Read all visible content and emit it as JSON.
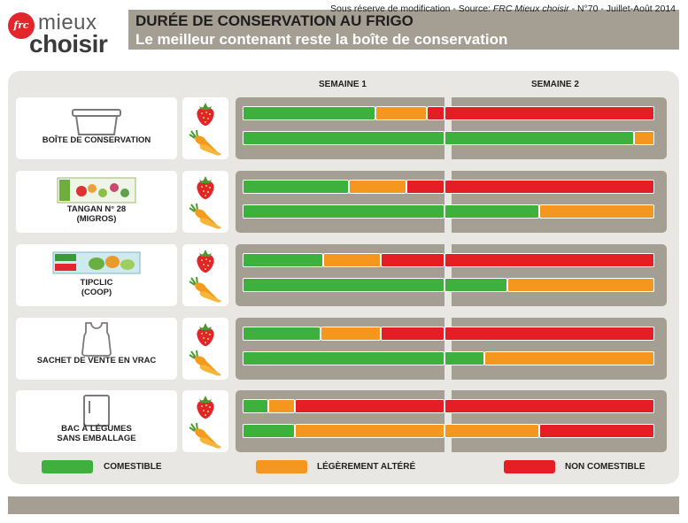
{
  "header": {
    "logo_badge": "frc",
    "logo_line1": "mieux",
    "logo_line2": "choisir",
    "title": "DURÉE DE CONSERVATION AU FRIGO",
    "subtitle": "Le meilleur contenant reste la boîte de conservation"
  },
  "weeks": [
    "SEMAINE 1",
    "SEMAINE 2"
  ],
  "colors": {
    "comestible": "#3db03d",
    "altere": "#f5971e",
    "non_comestible": "#e51d25",
    "band": "#a59e92",
    "panel": "#e9e7e3"
  },
  "legend": [
    {
      "label": "COMESTIBLE",
      "status": "comestible"
    },
    {
      "label": "LÉGÈREMENT ALTÉRÉ",
      "status": "altere"
    },
    {
      "label": "NON COMESTIBLE",
      "status": "non_comestible"
    }
  ],
  "icons": {
    "fruit": "strawberry-icon",
    "vegetable": "carrot-icon"
  },
  "chart_data": {
    "type": "bar",
    "orientation": "horizontal-stacked-timeline",
    "x_unit": "days",
    "x_range": [
      0,
      14
    ],
    "x_groups": [
      "SEMAINE 1",
      "SEMAINE 2"
    ],
    "series": [
      "COMESTIBLE",
      "LÉGÈREMENT ALTÉRÉ",
      "NON COMESTIBLE"
    ],
    "containers": [
      {
        "name": [
          "BOÎTE DE CONSERVATION"
        ],
        "icon": "container-box-icon",
        "rows": [
          {
            "food": "fraise",
            "segments": [
              {
                "status": "comestible",
                "days": 4.6
              },
              {
                "status": "altere",
                "days": 1.8
              },
              {
                "status": "non_comestible",
                "days": 7.6
              }
            ]
          },
          {
            "food": "carotte",
            "segments": [
              {
                "status": "comestible",
                "days": 13.3
              },
              {
                "status": "altere",
                "days": 0.7
              }
            ]
          }
        ]
      },
      {
        "name": [
          "TANGAN N° 28",
          "(MIGROS)"
        ],
        "icon": "tangan-bag-icon",
        "rows": [
          {
            "food": "fraise",
            "segments": [
              {
                "status": "comestible",
                "days": 3.7
              },
              {
                "status": "altere",
                "days": 2.0
              },
              {
                "status": "non_comestible",
                "days": 8.3
              }
            ]
          },
          {
            "food": "carotte",
            "segments": [
              {
                "status": "comestible",
                "days": 10.0
              },
              {
                "status": "altere",
                "days": 4.0
              }
            ]
          }
        ]
      },
      {
        "name": [
          "TIPCLIC",
          "(COOP)"
        ],
        "icon": "tipclic-bag-icon",
        "rows": [
          {
            "food": "fraise",
            "segments": [
              {
                "status": "comestible",
                "days": 2.8
              },
              {
                "status": "altere",
                "days": 2.0
              },
              {
                "status": "non_comestible",
                "days": 9.2
              }
            ]
          },
          {
            "food": "carotte",
            "segments": [
              {
                "status": "comestible",
                "days": 8.9
              },
              {
                "status": "altere",
                "days": 5.1
              }
            ]
          }
        ]
      },
      {
        "name": [
          "SACHET DE VENTE EN VRAC"
        ],
        "icon": "plastic-bag-icon",
        "rows": [
          {
            "food": "fraise",
            "segments": [
              {
                "status": "comestible",
                "days": 2.7
              },
              {
                "status": "altere",
                "days": 2.1
              },
              {
                "status": "non_comestible",
                "days": 9.2
              }
            ]
          },
          {
            "food": "carotte",
            "segments": [
              {
                "status": "comestible",
                "days": 8.1
              },
              {
                "status": "altere",
                "days": 5.9
              }
            ]
          }
        ]
      },
      {
        "name": [
          "BAC À LÉGUMES",
          "SANS EMBALLAGE"
        ],
        "icon": "fridge-icon",
        "rows": [
          {
            "food": "fraise",
            "segments": [
              {
                "status": "comestible",
                "days": 0.9
              },
              {
                "status": "altere",
                "days": 0.9
              },
              {
                "status": "non_comestible",
                "days": 12.2
              }
            ]
          },
          {
            "food": "carotte",
            "segments": [
              {
                "status": "comestible",
                "days": 1.8
              },
              {
                "status": "altere",
                "days": 8.2
              },
              {
                "status": "non_comestible",
                "days": 4.0
              }
            ]
          }
        ]
      }
    ]
  },
  "footer": {
    "prefix": "Sous réserve de modification - Source: ",
    "source": "FRC Mieux choisir",
    "suffix": " - N°70 - Juillet-Août 2014"
  }
}
